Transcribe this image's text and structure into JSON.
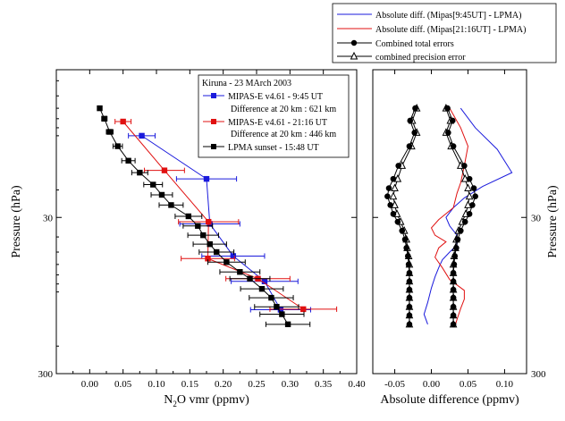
{
  "colors": {
    "mipas_morning": "#1a1adc",
    "mipas_evening": "#e01010",
    "lpma": "#000000"
  },
  "chart_data": [
    {
      "type": "line",
      "xlabel_main": "N",
      "xlabel_sub": "2",
      "xlabel_rest": "O vmr (ppmv)",
      "ylabel": "Pressure (hPa)",
      "xlim": [
        -0.05,
        0.4
      ],
      "xticks": [
        "0.00",
        "0.05",
        "0.10",
        "0.15",
        "0.20",
        "0.25",
        "0.30",
        "0.35",
        "0.40"
      ],
      "xtick_values": [
        0,
        0.05,
        0.1,
        0.15,
        0.2,
        0.25,
        0.3,
        0.35,
        0.4
      ],
      "ylim": [
        300,
        3.4
      ],
      "yscale": "log",
      "yticks": [
        "30",
        "300"
      ],
      "ytick_values": [
        30,
        300
      ],
      "legend": {
        "title": "Kiruna -  23 MArch 2003",
        "entries": [
          {
            "label": "MIPAS-E v4.61 - 9:45 UT",
            "note": "Difference at 20 km : 621 km"
          },
          {
            "label": "MIPAS-E v4.61 - 21:16 UT",
            "note": "Difference at 20 km : 446 km"
          },
          {
            "label": "LPMA sunset - 15:48 UT",
            "note": ""
          }
        ]
      },
      "series": [
        {
          "name": "MIPAS-E v4.61 - 9:45 UT",
          "points": [
            [
              0.078,
              9.0,
              0.02
            ],
            [
              0.175,
              17.0,
              0.045
            ],
            [
              0.18,
              33.0,
              0.045
            ],
            [
              0.215,
              53.0,
              0.047
            ],
            [
              0.262,
              77.0,
              0.05
            ],
            [
              0.286,
              117.0,
              0.045
            ]
          ]
        },
        {
          "name": "MIPAS-E v4.61 - 21:16 UT",
          "points": [
            [
              0.05,
              7.3,
              0.012
            ],
            [
              0.112,
              15.0,
              0.03
            ],
            [
              0.178,
              32.0,
              0.045
            ],
            [
              0.177,
              55.0,
              0.04
            ],
            [
              0.252,
              74.0,
              0.048
            ],
            [
              0.32,
              116.0,
              0.05
            ]
          ]
        },
        {
          "name": "LPMA sunset - 15:48 UT",
          "points": [
            [
              0.015,
              6.0,
              0.003
            ],
            [
              0.022,
              7.0,
              0.004
            ],
            [
              0.03,
              8.5,
              0.005
            ],
            [
              0.042,
              10.5,
              0.007
            ],
            [
              0.058,
              13.0,
              0.01
            ],
            [
              0.075,
              15.5,
              0.012
            ],
            [
              0.095,
              18.5,
              0.014
            ],
            [
              0.108,
              21.5,
              0.016
            ],
            [
              0.122,
              25.0,
              0.018
            ],
            [
              0.148,
              29.5,
              0.02
            ],
            [
              0.162,
              34.0,
              0.022
            ],
            [
              0.17,
              39.0,
              0.023
            ],
            [
              0.18,
              44.5,
              0.025
            ],
            [
              0.19,
              50.0,
              0.026
            ],
            [
              0.205,
              58.0,
              0.028
            ],
            [
              0.225,
              67.0,
              0.03
            ],
            [
              0.24,
              74.0,
              0.03
            ],
            [
              0.258,
              86.0,
              0.032
            ],
            [
              0.272,
              98.0,
              0.033
            ],
            [
              0.28,
              112.0,
              0.033
            ],
            [
              0.288,
              125.0,
              0.033
            ],
            [
              0.297,
              145.0,
              0.033
            ]
          ]
        }
      ]
    },
    {
      "type": "line",
      "xlabel": "Absolute difference (ppmv)",
      "ylabel": "Pressure (hPa)",
      "xlim": [
        -0.08,
        0.13
      ],
      "xticks": [
        "-0.05",
        "0.00",
        "0.05",
        "0.10"
      ],
      "xtick_values": [
        -0.05,
        0,
        0.05,
        0.1
      ],
      "ylim": [
        300,
        3.4
      ],
      "yscale": "log",
      "yticks": [
        "30",
        "300"
      ],
      "ytick_values": [
        30,
        300
      ],
      "legend": {
        "entries": [
          "Absolute diff. (Mipas[9:45UT] - LPMA)",
          "Absolute diff. (Mipas[21:16UT] - LPMA)",
          "Combined total errors",
          "combined precision error"
        ]
      },
      "lines": [
        {
          "name": "Absolute diff. (Mipas[9:45UT] - LPMA)",
          "points": [
            [
              0.04,
              6.0
            ],
            [
              0.06,
              8.0
            ],
            [
              0.09,
              11.0
            ],
            [
              0.11,
              15.5
            ],
            [
              0.07,
              19.0
            ],
            [
              0.045,
              22.5
            ],
            [
              0.03,
              26.0
            ],
            [
              0.02,
              30.0
            ],
            [
              0.025,
              34.0
            ],
            [
              0.035,
              39.0
            ],
            [
              0.035,
              45.0
            ],
            [
              0.025,
              50.0
            ],
            [
              0.015,
              56.0
            ],
            [
              0.01,
              63.0
            ],
            [
              0.005,
              72.0
            ],
            [
              0.0,
              85.0
            ],
            [
              -0.005,
              105.0
            ],
            [
              -0.01,
              125.0
            ],
            [
              -0.005,
              145.0
            ]
          ]
        },
        {
          "name": "Absolute diff. (Mipas[21:16UT] - LPMA)",
          "points": [
            [
              0.025,
              6.0
            ],
            [
              0.04,
              8.0
            ],
            [
              0.05,
              10.5
            ],
            [
              0.045,
              14.0
            ],
            [
              0.04,
              18.0
            ],
            [
              0.035,
              21.0
            ],
            [
              0.03,
              26.0
            ],
            [
              0.01,
              31.0
            ],
            [
              0.0,
              35.0
            ],
            [
              0.005,
              39.0
            ],
            [
              0.02,
              43.0
            ],
            [
              0.01,
              47.0
            ],
            [
              0.005,
              54.0
            ],
            [
              0.015,
              63.0
            ],
            [
              0.025,
              75.0
            ],
            [
              0.045,
              88.0
            ],
            [
              0.045,
              100.0
            ],
            [
              0.04,
              115.0
            ],
            [
              0.035,
              135.0
            ],
            [
              0.033,
              145.0
            ]
          ]
        }
      ],
      "total_error_x": [
        0.022,
        0.029,
        0.023,
        0.03,
        0.045,
        0.052,
        0.058,
        0.06,
        0.056,
        0.052,
        0.046,
        0.04,
        0.036,
        0.034,
        0.032,
        0.031,
        0.03,
        0.03,
        0.03,
        0.03,
        0.03,
        0.03,
        0.03
      ],
      "precision_error_x": [
        0.02,
        0.026,
        0.02,
        0.027,
        0.04,
        0.046,
        0.05,
        0.052,
        0.05,
        0.047,
        0.042,
        0.037,
        0.034,
        0.033,
        0.031,
        0.03,
        0.03,
        0.03,
        0.03,
        0.03,
        0.03,
        0.03,
        0.03
      ],
      "error_levels": [
        6.0,
        7.2,
        8.6,
        10.5,
        14.0,
        17.0,
        19.5,
        22.0,
        25.0,
        28.5,
        32.0,
        36.5,
        41.5,
        47.0,
        53.0,
        60.0,
        68.0,
        77.0,
        87.0,
        98.0,
        112.0,
        127.0,
        145.0
      ]
    }
  ]
}
